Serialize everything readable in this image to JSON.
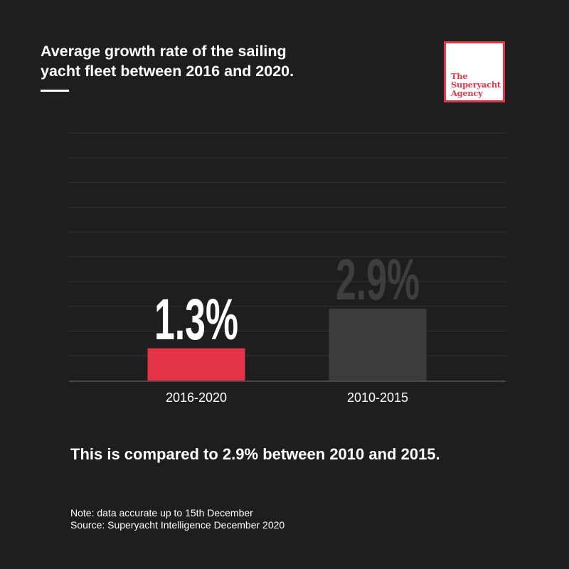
{
  "title_line1": "Average growth rate of the sailing",
  "title_line2": "yacht fleet between 2016 and 2020.",
  "logo": {
    "text": "The\nSuperyacht\nAgency",
    "border_color": "#e33448"
  },
  "summary": "This is compared to 2.9% between 2010 and 2015.",
  "note": "Note: data accurate up to 15th December",
  "source": "Source: Superyacht Intelligence December 2020",
  "colors": {
    "background": "#1f1e1f",
    "highlight": "#e33448",
    "muted": "#3d3c3d",
    "muted_label": "#3f3e3f",
    "text": "#ffffff"
  },
  "chart_data": {
    "type": "bar",
    "categories": [
      "2016-2020",
      "2010-2015"
    ],
    "values": [
      1.3,
      2.9
    ],
    "value_labels": [
      "1.3%",
      "2.9%"
    ],
    "bar_colors": [
      "#e33448",
      "#3d3c3d"
    ],
    "label_colors": [
      "#ffffff",
      "#3f3e3f"
    ],
    "unit": "%",
    "ylim": [
      0,
      10
    ],
    "grid": true
  }
}
